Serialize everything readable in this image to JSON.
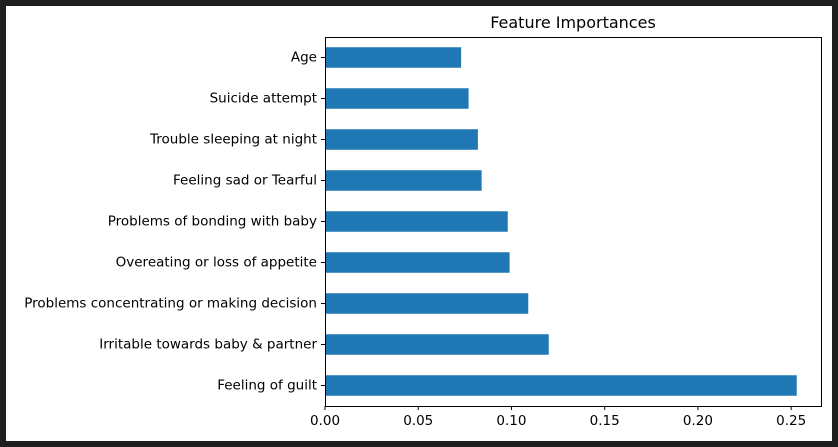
{
  "chart_data": {
    "type": "bar",
    "orientation": "horizontal",
    "title": "Feature Importances",
    "xlabel": "",
    "ylabel": "",
    "categories": [
      "Age",
      "Suicide attempt",
      "Trouble sleeping at night",
      "Feeling sad or Tearful",
      "Problems of bonding with baby",
      "Overeating or loss of appetite",
      "Problems concentrating or making decision",
      "Irritable towards baby & partner",
      "Feeling of guilt"
    ],
    "values": [
      0.073,
      0.077,
      0.082,
      0.084,
      0.098,
      0.099,
      0.109,
      0.12,
      0.253
    ],
    "xlim": [
      0.0,
      0.266
    ],
    "xticks": [
      0.0,
      0.05,
      0.1,
      0.15,
      0.2,
      0.25
    ],
    "xtick_labels": [
      "0.00",
      "0.05",
      "0.10",
      "0.15",
      "0.20",
      "0.25"
    ],
    "grid": false,
    "legend": "none",
    "bar_color": "#1f77b4"
  }
}
